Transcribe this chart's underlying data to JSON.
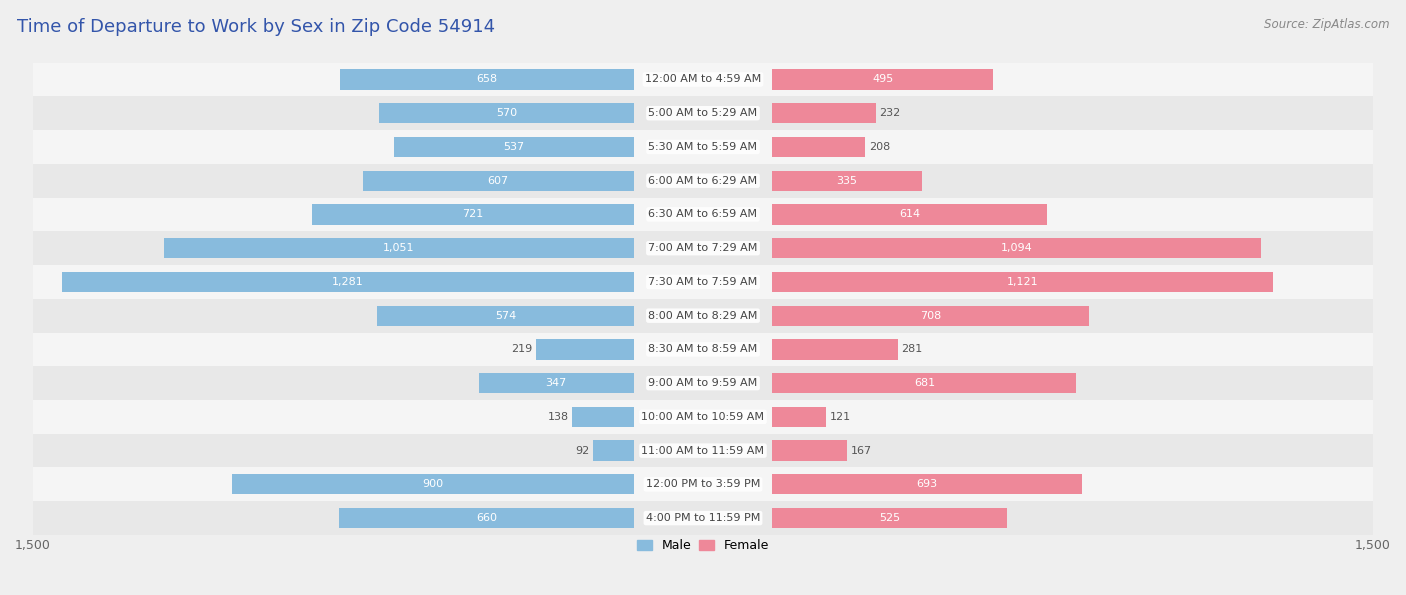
{
  "title": "Time of Departure to Work by Sex in Zip Code 54914",
  "source": "Source: ZipAtlas.com",
  "categories": [
    "12:00 AM to 4:59 AM",
    "5:00 AM to 5:29 AM",
    "5:30 AM to 5:59 AM",
    "6:00 AM to 6:29 AM",
    "6:30 AM to 6:59 AM",
    "7:00 AM to 7:29 AM",
    "7:30 AM to 7:59 AM",
    "8:00 AM to 8:29 AM",
    "8:30 AM to 8:59 AM",
    "9:00 AM to 9:59 AM",
    "10:00 AM to 10:59 AM",
    "11:00 AM to 11:59 AM",
    "12:00 PM to 3:59 PM",
    "4:00 PM to 11:59 PM"
  ],
  "male": [
    658,
    570,
    537,
    607,
    721,
    1051,
    1281,
    574,
    219,
    347,
    138,
    92,
    900,
    660
  ],
  "female": [
    495,
    232,
    208,
    335,
    614,
    1094,
    1121,
    708,
    281,
    681,
    121,
    167,
    693,
    525
  ],
  "male_color": "#88bbdd",
  "female_color": "#ee8899",
  "axis_max": 1500,
  "bg_color": "#efefef",
  "row_bg_even": "#f5f5f5",
  "row_bg_odd": "#e8e8e8",
  "bar_height": 0.6,
  "title_color": "#3355aa",
  "title_fontsize": 13,
  "source_fontsize": 8.5,
  "label_fontsize": 8.0,
  "cat_fontsize": 8.0,
  "inside_threshold_male": 300,
  "inside_threshold_female": 300
}
